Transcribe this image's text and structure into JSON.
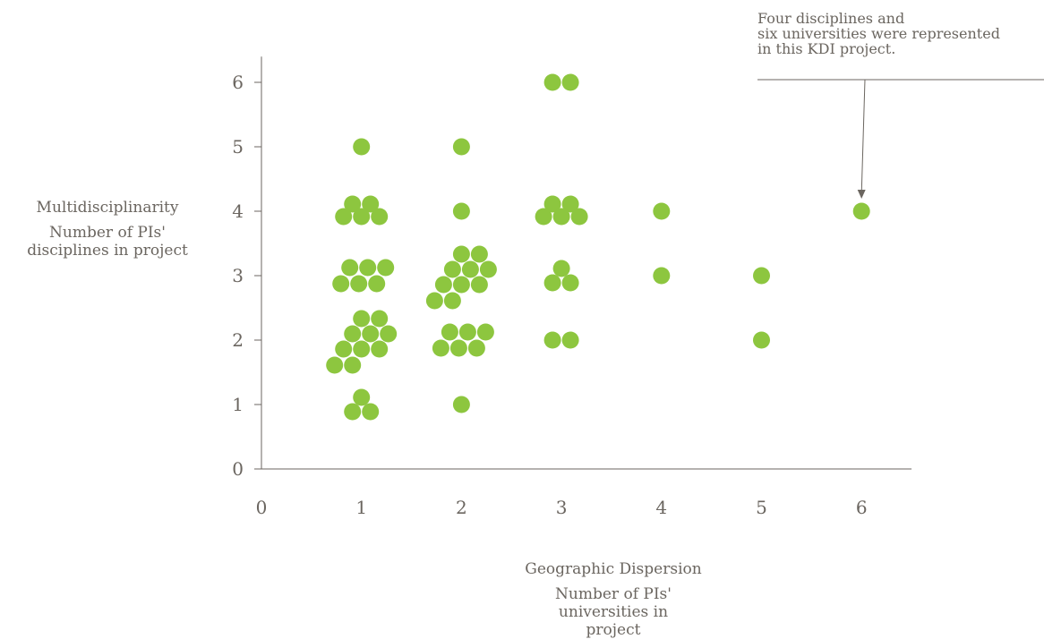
{
  "chart_data": {
    "type": "scatter",
    "xlabel": "Geographic Dispersion",
    "xlabel_sub": "Number of PIs' universities in project",
    "ylabel": "Multidisciplinarity",
    "ylabel_sub": "Number of PIs' disciplines in project",
    "xlim": [
      0,
      6.5
    ],
    "ylim": [
      0,
      6.4
    ],
    "x_ticks": [
      "0",
      "1",
      "2",
      "3",
      "4",
      "5",
      "6"
    ],
    "y_ticks": [
      "0",
      "1",
      "2",
      "3",
      "4",
      "5",
      "6"
    ],
    "marker_color": "#8dc63f",
    "grid": false,
    "annotation": {
      "line1": "Four disciplines and",
      "line2": "six universities were represented",
      "line3": "in this KDI project.",
      "target": [
        6,
        4
      ]
    },
    "groups": [
      {
        "x": 1,
        "y": 1,
        "count": 3
      },
      {
        "x": 1,
        "y": 2,
        "count": 10
      },
      {
        "x": 1,
        "y": 3,
        "count": 6
      },
      {
        "x": 1,
        "y": 4,
        "count": 5
      },
      {
        "x": 1,
        "y": 5,
        "count": 1
      },
      {
        "x": 2,
        "y": 1,
        "count": 1
      },
      {
        "x": 2,
        "y": 2,
        "count": 6
      },
      {
        "x": 2,
        "y": 3,
        "count": 10
      },
      {
        "x": 2,
        "y": 4,
        "count": 1
      },
      {
        "x": 2,
        "y": 5,
        "count": 1
      },
      {
        "x": 3,
        "y": 2,
        "count": 2
      },
      {
        "x": 3,
        "y": 3,
        "count": 3
      },
      {
        "x": 3,
        "y": 4,
        "count": 5
      },
      {
        "x": 3,
        "y": 6,
        "count": 2
      },
      {
        "x": 4,
        "y": 3,
        "count": 1
      },
      {
        "x": 4,
        "y": 4,
        "count": 1
      },
      {
        "x": 5,
        "y": 2,
        "count": 1
      },
      {
        "x": 5,
        "y": 3,
        "count": 1
      },
      {
        "x": 6,
        "y": 4,
        "count": 1
      }
    ]
  }
}
